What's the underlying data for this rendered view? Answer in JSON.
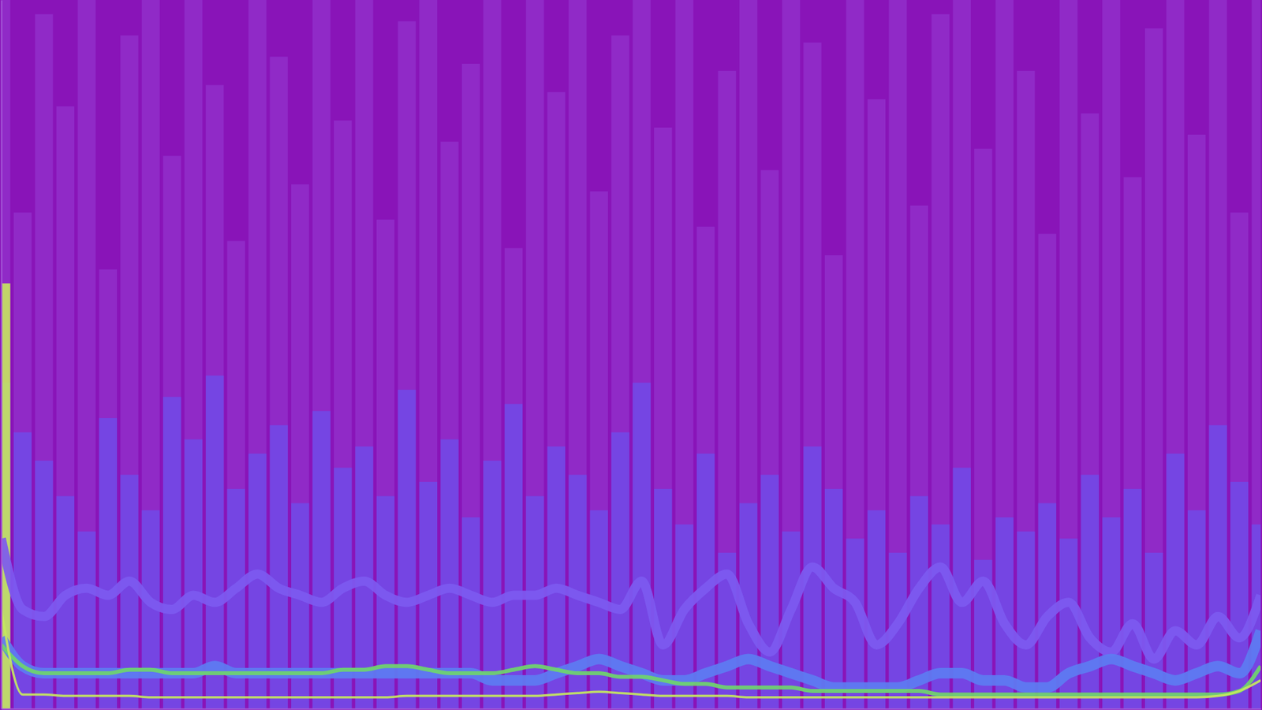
{
  "chart_data": {
    "type": "line",
    "tick_labels": false,
    "grid": false,
    "x": [
      0,
      1,
      2,
      3,
      4,
      5,
      6,
      7,
      8,
      9,
      10,
      11,
      12,
      13,
      14,
      15,
      16,
      17,
      18,
      19,
      20,
      21,
      22,
      23,
      24,
      25,
      26,
      27,
      28,
      29,
      30,
      31,
      32,
      33,
      34,
      35,
      36,
      37,
      38,
      39,
      40,
      41,
      42,
      43,
      44,
      45,
      46,
      47,
      48,
      49,
      50,
      51,
      52,
      53,
      54,
      55,
      56,
      57,
      58,
      59
    ],
    "xlim": [
      0,
      59
    ],
    "xticks": [],
    "ylim": [
      0,
      100
    ],
    "yticks": [],
    "series": [
      {
        "type": "bar",
        "color": "#9331cc",
        "values": [
          100,
          70,
          98,
          85,
          100,
          62,
          95,
          100,
          78,
          100,
          88,
          66,
          100,
          92,
          74,
          100,
          83,
          100,
          69,
          97,
          100,
          80,
          91,
          100,
          65,
          100,
          87,
          100,
          73,
          95,
          100,
          82,
          100,
          68,
          90,
          100,
          76,
          100,
          94,
          64,
          100,
          86,
          100,
          71,
          98,
          100,
          79,
          100,
          90,
          67,
          100,
          84,
          100,
          75,
          96,
          100,
          81,
          100,
          70,
          100
        ]
      },
      {
        "type": "bar",
        "color": "#7248e6",
        "values": [
          46,
          39,
          35,
          30,
          25,
          41,
          33,
          28,
          44,
          38,
          47,
          31,
          36,
          40,
          29,
          42,
          34,
          37,
          30,
          45,
          32,
          38,
          27,
          35,
          43,
          30,
          37,
          33,
          28,
          39,
          46,
          31,
          26,
          36,
          22,
          29,
          33,
          25,
          37,
          31,
          24,
          28,
          22,
          30,
          26,
          34,
          21,
          27,
          25,
          29,
          24,
          33,
          27,
          31,
          22,
          36,
          28,
          40,
          32,
          26
        ]
      },
      {
        "type": "bar",
        "color": "#c6e85e",
        "values": [
          60,
          null,
          null,
          null,
          null,
          null,
          null,
          null,
          null,
          null,
          null,
          null,
          null,
          null,
          null,
          null,
          null,
          null,
          null,
          null,
          null,
          null,
          null,
          null,
          null,
          null,
          null,
          null,
          null,
          null,
          null,
          null,
          null,
          null,
          null,
          null,
          null,
          null,
          null,
          null,
          null,
          null,
          null,
          null,
          null,
          null,
          null,
          null,
          null,
          null,
          null,
          null,
          null,
          null,
          null,
          null,
          null,
          null,
          null,
          null
        ]
      },
      {
        "type": "line",
        "color": "#7d5af0",
        "values": [
          24,
          14,
          13,
          16,
          17,
          16,
          18,
          15,
          14,
          16,
          15,
          17,
          19,
          17,
          16,
          15,
          17,
          18,
          16,
          15,
          16,
          17,
          16,
          15,
          16,
          16,
          17,
          16,
          15,
          14,
          18,
          9,
          14,
          17,
          19,
          12,
          8,
          14,
          20,
          17,
          15,
          9,
          12,
          17,
          20,
          15,
          18,
          12,
          9,
          13,
          15,
          10,
          8,
          12,
          7,
          11,
          9,
          13,
          10,
          16
        ]
      },
      {
        "type": "line",
        "color": "#5d7cf2",
        "values": [
          10,
          6,
          5,
          5,
          5,
          5,
          5,
          5,
          5,
          5,
          6,
          5,
          5,
          5,
          5,
          5,
          5,
          5,
          5,
          5,
          5,
          5,
          5,
          4,
          4,
          4,
          5,
          6,
          7,
          6,
          5,
          4,
          4,
          5,
          6,
          7,
          6,
          5,
          4,
          3,
          3,
          3,
          3,
          4,
          5,
          5,
          4,
          4,
          3,
          3,
          5,
          6,
          7,
          6,
          5,
          4,
          5,
          6,
          5,
          11
        ]
      },
      {
        "type": "line",
        "color": "#6fd66b",
        "values": [
          9,
          6,
          5,
          5,
          5,
          5,
          5.5,
          5.5,
          5,
          5,
          5,
          5,
          5,
          5,
          5,
          5,
          5.5,
          5.5,
          6,
          6,
          5.5,
          5,
          5,
          5,
          5.5,
          6,
          5.5,
          5,
          5,
          4.5,
          4.5,
          4,
          3.5,
          3.5,
          3,
          3,
          3,
          3,
          2.5,
          2.5,
          2.5,
          2.5,
          2.5,
          2.5,
          2,
          2,
          2,
          2,
          2,
          2,
          2,
          2,
          2,
          2,
          2,
          2,
          2,
          2,
          2.5,
          6
        ]
      },
      {
        "type": "line",
        "color": "#c6e85e",
        "values": [
          14,
          2,
          2,
          1.8,
          1.8,
          1.8,
          1.8,
          1.6,
          1.6,
          1.6,
          1.6,
          1.6,
          1.6,
          1.6,
          1.6,
          1.6,
          1.6,
          1.6,
          1.6,
          1.8,
          1.8,
          1.8,
          1.8,
          1.8,
          1.8,
          1.8,
          2,
          2.2,
          2.4,
          2.2,
          2,
          1.8,
          1.8,
          1.8,
          1.8,
          1.6,
          1.6,
          1.6,
          1.6,
          1.6,
          1.6,
          1.6,
          1.6,
          1.6,
          1.6,
          1.6,
          1.6,
          1.6,
          1.6,
          1.6,
          1.6,
          1.6,
          1.6,
          1.6,
          1.6,
          1.6,
          1.6,
          1.8,
          2.5,
          4
        ]
      }
    ]
  }
}
